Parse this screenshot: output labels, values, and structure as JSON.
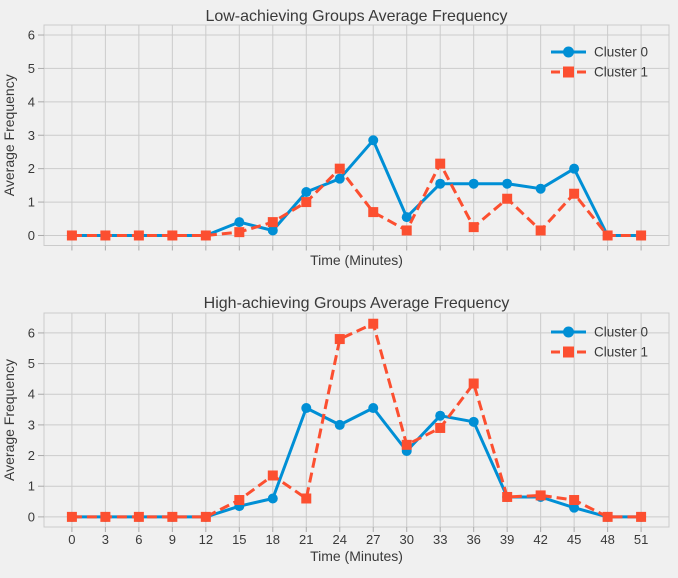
{
  "figure": {
    "background": "#F0F0F0",
    "grid_color": "#CBCBCB",
    "tick_color": "#ABABAB",
    "text_color": "#3A3A3A"
  },
  "chart_data": [
    {
      "type": "line",
      "title": "Low-achieving Groups Average Frequency",
      "xlabel": "Time (Minutes)",
      "ylabel": "Average Frequency",
      "grid": true,
      "legend_position": "upper right",
      "show_x_tick_labels": false,
      "x": [
        0,
        3,
        6,
        9,
        12,
        15,
        18,
        21,
        24,
        27,
        30,
        33,
        36,
        39,
        42,
        45,
        48,
        51
      ],
      "xticks": [
        0,
        3,
        6,
        9,
        12,
        15,
        18,
        21,
        24,
        27,
        30,
        33,
        36,
        39,
        42,
        45,
        48,
        51
      ],
      "yticks": [
        0,
        1,
        2,
        3,
        4,
        5,
        6
      ],
      "xlim": [
        -2.5,
        53.5
      ],
      "ylim": [
        -0.3,
        6.3
      ],
      "series": [
        {
          "name": "Cluster 0",
          "color": "#008FD5",
          "line_style": "solid",
          "marker": "circle",
          "values": [
            0,
            0,
            0,
            0,
            0,
            0.4,
            0.15,
            1.3,
            1.7,
            2.85,
            0.55,
            1.55,
            1.55,
            1.55,
            1.4,
            2.0,
            0,
            0
          ]
        },
        {
          "name": "Cluster 1",
          "color": "#FC4F30",
          "line_style": "dashed",
          "marker": "square",
          "values": [
            0,
            0,
            0,
            0,
            0,
            0.1,
            0.4,
            1.0,
            2.0,
            0.7,
            0.15,
            2.15,
            0.25,
            1.1,
            0.15,
            1.25,
            0,
            0
          ]
        }
      ]
    },
    {
      "type": "line",
      "title": "High-achieving Groups Average Frequency",
      "xlabel": "Time (Minutes)",
      "ylabel": "Average Frequency",
      "grid": true,
      "legend_position": "upper right",
      "show_x_tick_labels": true,
      "x": [
        0,
        3,
        6,
        9,
        12,
        15,
        18,
        21,
        24,
        27,
        30,
        33,
        36,
        39,
        42,
        45,
        48,
        51
      ],
      "xticks": [
        0,
        3,
        6,
        9,
        12,
        15,
        18,
        21,
        24,
        27,
        30,
        33,
        36,
        39,
        42,
        45,
        48,
        51
      ],
      "yticks": [
        0,
        1,
        2,
        3,
        4,
        5,
        6
      ],
      "xlim": [
        -2.5,
        53.5
      ],
      "ylim": [
        -0.33,
        6.65
      ],
      "series": [
        {
          "name": "Cluster 0",
          "color": "#008FD5",
          "line_style": "solid",
          "marker": "circle",
          "values": [
            0,
            0,
            0,
            0,
            0,
            0.35,
            0.6,
            3.55,
            3.0,
            3.55,
            2.15,
            3.3,
            3.1,
            0.65,
            0.65,
            0.3,
            0,
            0
          ]
        },
        {
          "name": "Cluster 1",
          "color": "#FC4F30",
          "line_style": "dashed",
          "marker": "square",
          "values": [
            0,
            0,
            0,
            0,
            0,
            0.55,
            1.35,
            0.6,
            5.8,
            6.3,
            2.35,
            2.9,
            4.35,
            0.65,
            0.7,
            0.55,
            0,
            0
          ]
        }
      ]
    }
  ]
}
